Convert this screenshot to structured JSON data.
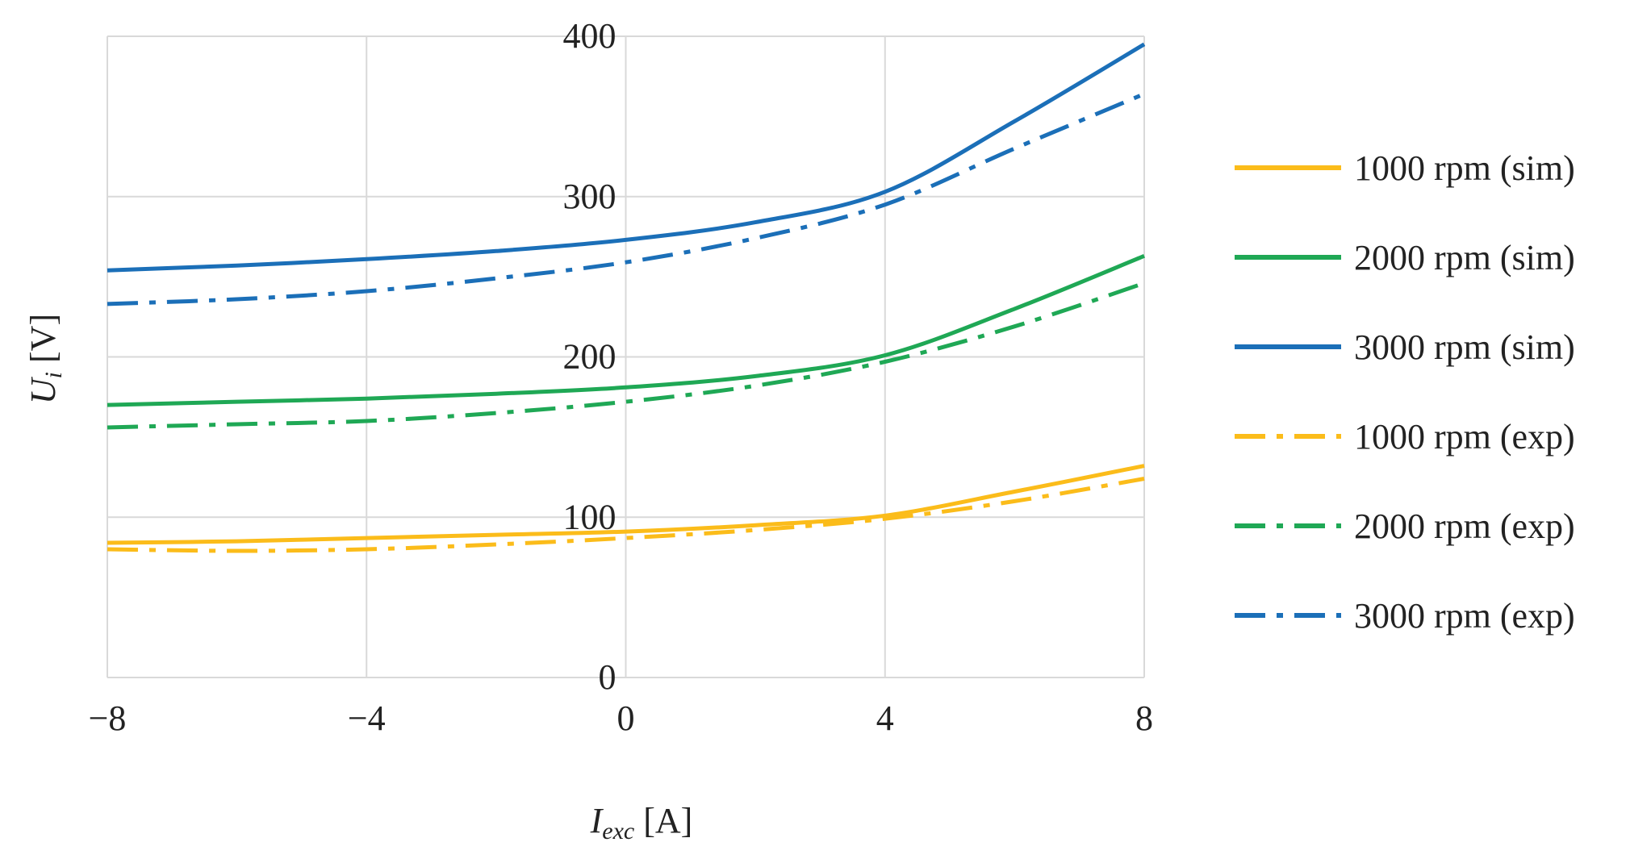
{
  "chart_data": {
    "type": "line",
    "xlabel": {
      "main": "I",
      "sub": "exc",
      "unit": " [A]"
    },
    "ylabel": {
      "main": "U",
      "sub": "i",
      "unit": " [V]"
    },
    "xlim": [
      -8,
      8
    ],
    "ylim": [
      0,
      400
    ],
    "x_ticks": [
      -8,
      -4,
      0,
      4,
      8
    ],
    "x_tick_labels": [
      "−8",
      "−4",
      "0",
      "4",
      "8"
    ],
    "y_ticks": [
      0,
      100,
      200,
      300,
      400
    ],
    "y_tick_labels": [
      "0",
      "100",
      "200",
      "300",
      "400"
    ],
    "grid": true,
    "legend_position": "right",
    "x": [
      -8,
      -6,
      -4,
      -2,
      0,
      2,
      4,
      6,
      8
    ],
    "series": [
      {
        "name": "1000 rpm (sim)",
        "color": "#fbbc1a",
        "dash": "solid",
        "values": [
          84,
          85,
          87,
          89,
          91,
          95,
          101,
          116,
          132
        ]
      },
      {
        "name": "2000 rpm (sim)",
        "color": "#1fa855",
        "dash": "solid",
        "values": [
          170,
          172,
          174,
          177,
          181,
          188,
          201,
          230,
          263
        ]
      },
      {
        "name": "3000 rpm (sim)",
        "color": "#1b6fb8",
        "dash": "solid",
        "values": [
          254,
          257,
          261,
          266,
          273,
          284,
          303,
          347,
          395
        ]
      },
      {
        "name": "1000 rpm (exp)",
        "color": "#fbbc1a",
        "dash": "dashdot",
        "values": [
          80,
          79,
          80,
          83,
          87,
          92,
          99,
          110,
          124
        ]
      },
      {
        "name": "2000 rpm (exp)",
        "color": "#1fa855",
        "dash": "dashdot",
        "values": [
          156,
          158,
          160,
          165,
          172,
          182,
          197,
          219,
          246
        ]
      },
      {
        "name": "3000 rpm (exp)",
        "color": "#1b6fb8",
        "dash": "dashdot",
        "values": [
          233,
          236,
          241,
          249,
          259,
          274,
          295,
          330,
          364
        ]
      }
    ]
  }
}
